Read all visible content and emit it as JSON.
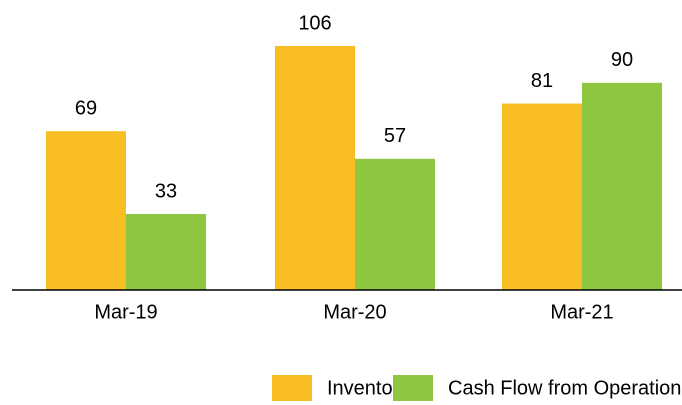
{
  "chart_data": {
    "type": "bar",
    "categories": [
      "Mar-19",
      "Mar-20",
      "Mar-21"
    ],
    "series": [
      {
        "name": "Inventory",
        "color": "#F9BE24",
        "values": [
          69,
          106,
          81
        ]
      },
      {
        "name": "Cash Flow from Operations",
        "color": "#8DC63F",
        "values": [
          33,
          57,
          90
        ]
      }
    ]
  }
}
